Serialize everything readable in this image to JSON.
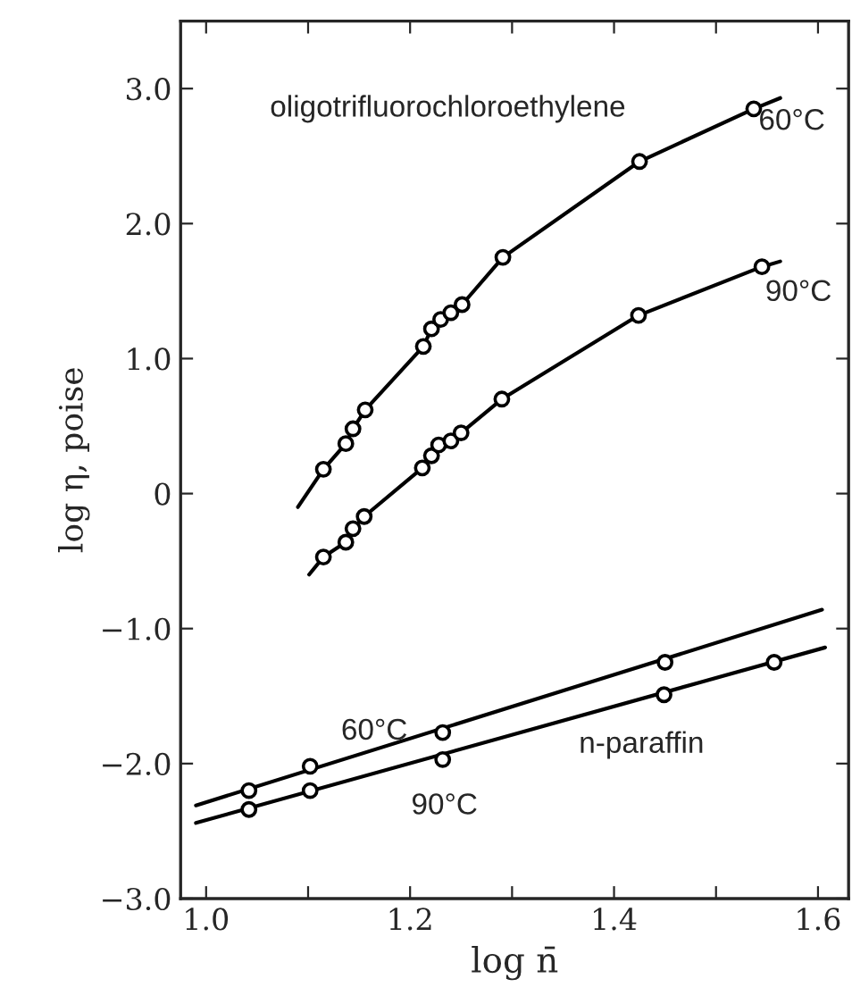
{
  "chart_data": {
    "type": "line",
    "xlabel": "log n̄",
    "ylabel": "log η, poise",
    "xlim": [
      0.975,
      1.63
    ],
    "ylim": [
      -3.0,
      3.5
    ],
    "xticks": [
      {
        "value": 1.0,
        "label": "1.0"
      },
      {
        "value": 1.1,
        "label": null
      },
      {
        "value": 1.2,
        "label": "1.2"
      },
      {
        "value": 1.3,
        "label": null
      },
      {
        "value": 1.4,
        "label": "1.4"
      },
      {
        "value": 1.5,
        "label": null
      },
      {
        "value": 1.6,
        "label": "1.6"
      }
    ],
    "yticks": [
      {
        "value": -3,
        "label": "−3.0"
      },
      {
        "value": -2,
        "label": "−2.0"
      },
      {
        "value": -1,
        "label": "−1.0"
      },
      0,
      {
        "value": 1,
        "label": "1.0"
      },
      {
        "value": 2,
        "label": "2.0"
      },
      {
        "value": 3,
        "label": "3.0"
      }
    ],
    "grid": false,
    "legend": false,
    "series": [
      {
        "color": "#000000",
        "marker": "none",
        "line_style": "solid",
        "x": [
          1.09,
          1.115,
          1.137,
          1.144,
          1.156,
          1.213,
          1.221,
          1.23,
          1.24,
          1.251,
          1.291,
          1.425,
          1.537,
          1.563
        ],
        "values": [
          -0.1,
          0.18,
          0.37,
          0.48,
          0.62,
          1.09,
          1.22,
          1.29,
          1.34,
          1.4,
          1.75,
          2.46,
          2.85,
          2.93
        ]
      },
      {
        "color": "#000000",
        "marker": "none",
        "line_style": "solid",
        "x": [
          1.101,
          1.115,
          1.137,
          1.144,
          1.155,
          1.212,
          1.221,
          1.228,
          1.24,
          1.25,
          1.29,
          1.424,
          1.545,
          1.563
        ],
        "values": [
          -0.6,
          -0.47,
          -0.36,
          -0.26,
          -0.17,
          0.19,
          0.28,
          0.36,
          0.39,
          0.45,
          0.7,
          1.32,
          1.68,
          1.72
        ]
      },
      {
        "color": "#000000",
        "marker": "none",
        "line_style": "solid",
        "x": [
          0.99,
          1.604
        ],
        "values": [
          -2.31,
          -0.86
        ]
      },
      {
        "color": "#000000",
        "marker": "none",
        "line_style": "solid",
        "x": [
          0.99,
          1.607
        ],
        "values": [
          -2.44,
          -1.14
        ]
      },
      {
        "type": "scatter",
        "color": "#000000",
        "marker": "circle",
        "x": [
          1.115,
          1.137,
          1.144,
          1.156,
          1.213,
          1.221,
          1.23,
          1.24,
          1.251,
          1.291,
          1.425,
          1.537
        ],
        "values": [
          0.18,
          0.37,
          0.48,
          0.62,
          1.09,
          1.22,
          1.29,
          1.34,
          1.4,
          1.75,
          2.46,
          2.85
        ]
      },
      {
        "type": "scatter",
        "color": "#000000",
        "marker": "circle",
        "x": [
          1.115,
          1.137,
          1.144,
          1.155,
          1.212,
          1.221,
          1.228,
          1.24,
          1.25,
          1.29,
          1.424,
          1.545
        ],
        "values": [
          -0.47,
          -0.36,
          -0.26,
          -0.17,
          0.19,
          0.28,
          0.36,
          0.39,
          0.45,
          0.7,
          1.32,
          1.68
        ]
      },
      {
        "type": "scatter",
        "color": "#000000",
        "marker": "circle",
        "x": [
          1.042,
          1.102,
          1.232,
          1.45
        ],
        "values": [
          -2.2,
          -2.02,
          -1.77,
          -1.25
        ]
      },
      {
        "type": "scatter",
        "color": "#000000",
        "marker": "circle",
        "x": [
          1.042,
          1.102,
          1.232,
          1.449,
          1.557
        ],
        "values": [
          -2.34,
          -2.2,
          -1.97,
          -1.49,
          -1.25
        ]
      }
    ],
    "annotations": [
      "oligotrifluorochloroethylene",
      "60°C",
      "90°C",
      "60°C",
      "90°C",
      "n-paraffin"
    ]
  }
}
